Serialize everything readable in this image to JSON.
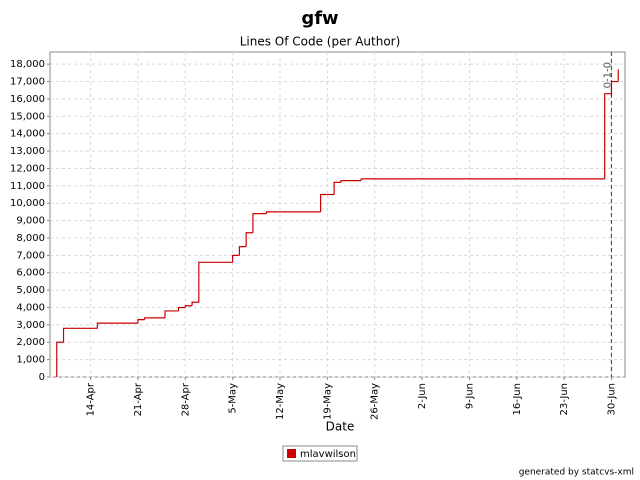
{
  "chart_data": {
    "type": "step-line",
    "title": "gfw",
    "subtitle": "Lines Of Code (per Author)",
    "x_label": "Date",
    "x": [
      "9-Apr",
      "9-Apr",
      "10-Apr",
      "15-Apr",
      "21-Apr",
      "22-Apr",
      "25-Apr",
      "27-Apr",
      "28-Apr",
      "29-Apr",
      "30-Apr",
      "30-Apr",
      "5-May",
      "6-May",
      "7-May",
      "8-May",
      "10-May",
      "18-May",
      "20-May",
      "21-May",
      "24-May",
      "29-Jun",
      "30-Jun",
      "30-Jun",
      "1-Jul"
    ],
    "series": [
      {
        "name": "mlavwilson",
        "color": "#cc0000",
        "values": [
          0,
          2000,
          2800,
          3100,
          3300,
          3400,
          3800,
          4000,
          4100,
          4300,
          5700,
          6600,
          7000,
          7500,
          8300,
          9400,
          9500,
          10500,
          11200,
          11300,
          11400,
          16300,
          16200,
          17000,
          17700
        ]
      }
    ],
    "xlim": [
      "8-Apr",
      "2-Jul"
    ],
    "xticks": [
      "14-Apr",
      "21-Apr",
      "28-Apr",
      "5-May",
      "12-May",
      "19-May",
      "26-May",
      "2-Jun",
      "9-Jun",
      "16-Jun",
      "23-Jun",
      "30-Jun"
    ],
    "ylim": [
      0,
      18700
    ],
    "yticks": [
      0,
      {
        "value": 1000,
        "label": "1,000"
      },
      {
        "value": 2000,
        "label": "2,000"
      },
      {
        "value": 3000,
        "label": "3,000"
      },
      {
        "value": 4000,
        "label": "4,000"
      },
      {
        "value": 5000,
        "label": "5,000"
      },
      {
        "value": 6000,
        "label": "6,000"
      },
      {
        "value": 7000,
        "label": "7,000"
      },
      {
        "value": 8000,
        "label": "8,000"
      },
      {
        "value": 9000,
        "label": "9,000"
      },
      {
        "value": 10000,
        "label": "10,000"
      },
      {
        "value": 11000,
        "label": "11,000"
      },
      {
        "value": 12000,
        "label": "12,000"
      },
      {
        "value": 13000,
        "label": "13,000"
      },
      {
        "value": 14000,
        "label": "14,000"
      },
      {
        "value": 15000,
        "label": "15,000"
      },
      {
        "value": 16000,
        "label": "16,000"
      },
      {
        "value": 17000,
        "label": "17,000"
      },
      {
        "value": 18000,
        "label": "18,000"
      }
    ],
    "grid": true,
    "annotations": [
      {
        "x": "30-Jun",
        "label": "0-1-0"
      }
    ],
    "legend": "bottom",
    "footer": "generated by statcvs-xml"
  }
}
